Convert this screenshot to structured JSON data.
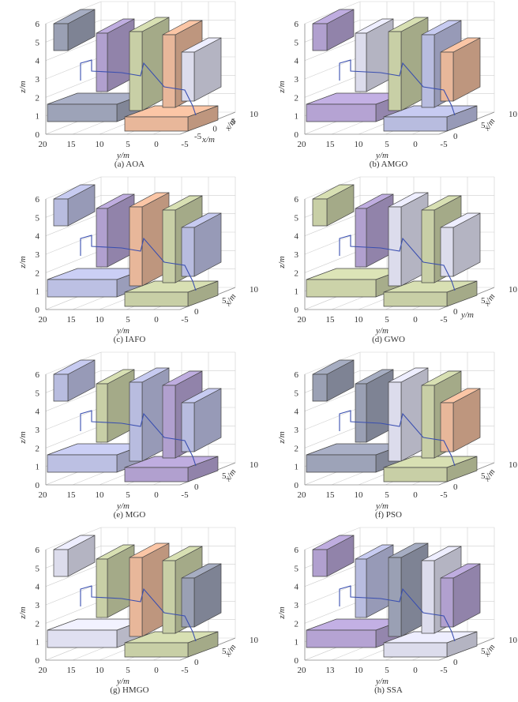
{
  "figure": {
    "panels": [
      {
        "id": "a",
        "caption": "(a) AOA",
        "z_axis_label": "z/m",
        "y_axis_label": "y/m",
        "x_axis_label": "x/m",
        "z_ticks": [
          "0",
          "1",
          "2",
          "3",
          "4",
          "5",
          "6"
        ],
        "y_ticks": [
          "20",
          "15",
          "10",
          "5",
          "0",
          "-5"
        ],
        "x_ticks": [
          "-5",
          "0",
          "5",
          "10"
        ],
        "extra_label": "x/m",
        "blocks": [
          {
            "color": "#9aa0b4",
            "shape": "low"
          },
          {
            "color": "#b1a0cf",
            "shape": "tall"
          },
          {
            "color": "#c8cfa6",
            "shape": "tall"
          },
          {
            "color": "#e8b79a",
            "shape": "tall"
          },
          {
            "color": "#dcdcec",
            "shape": "tall"
          }
        ]
      },
      {
        "id": "b",
        "caption": "(b) AMGO",
        "z_axis_label": "z/m",
        "y_axis_label": "y/m",
        "x_axis_label": "x/m",
        "z_ticks": [
          "0",
          "1",
          "2",
          "3",
          "4",
          "5",
          "6"
        ],
        "y_ticks": [
          "20",
          "15",
          "10",
          "5",
          "0",
          "-5"
        ],
        "x_ticks": [
          "0",
          "5",
          "10"
        ],
        "blocks": [
          {
            "color": "#b1a0cf",
            "shape": "low"
          },
          {
            "color": "#dcdcec",
            "shape": "tall"
          },
          {
            "color": "#c8cfa6",
            "shape": "tall"
          },
          {
            "color": "#b8bcdf",
            "shape": "tall"
          },
          {
            "color": "#e8b79a",
            "shape": "tall"
          }
        ]
      },
      {
        "id": "c",
        "caption": "(c) IAFO",
        "z_axis_label": "z/m",
        "y_axis_label": "y/m",
        "x_axis_label": "x/m",
        "z_ticks": [
          "0",
          "1",
          "2",
          "3",
          "4",
          "5",
          "6"
        ],
        "y_ticks": [
          "20",
          "15",
          "10",
          "5",
          "0",
          "-5"
        ],
        "x_ticks": [
          "0",
          "5",
          "10"
        ],
        "blocks": [
          {
            "color": "#b8bcdf",
            "shape": "low"
          },
          {
            "color": "#b1a0cf",
            "shape": "tall"
          },
          {
            "color": "#e8b79a",
            "shape": "tall"
          },
          {
            "color": "#c8cfa6",
            "shape": "tall"
          },
          {
            "color": "#b8bcdf",
            "shape": "tall"
          }
        ]
      },
      {
        "id": "d",
        "caption": "(d) GWO",
        "z_axis_label": "z/m",
        "y_axis_label": "y/m",
        "x_axis_label": "x/m",
        "z_ticks": [
          "0",
          "1",
          "2",
          "3",
          "4",
          "5",
          "6"
        ],
        "y_ticks": [
          "20",
          "15",
          "10",
          "5",
          "0",
          "-5"
        ],
        "x_ticks": [
          "0",
          "5",
          "10"
        ],
        "extra_label": "y/m",
        "blocks": [
          {
            "color": "#c8cfa6",
            "shape": "low"
          },
          {
            "color": "#b1a0cf",
            "shape": "tall"
          },
          {
            "color": "#dcdcec",
            "shape": "tall"
          },
          {
            "color": "#c8cfa6",
            "shape": "tall"
          },
          {
            "color": "#dcdcec",
            "shape": "tall"
          }
        ]
      },
      {
        "id": "e",
        "caption": "(e) MGO",
        "z_axis_label": "z/m",
        "y_axis_label": "y/m",
        "x_axis_label": "x/m",
        "z_ticks": [
          "0",
          "1",
          "2",
          "3",
          "4",
          "5",
          "6"
        ],
        "y_ticks": [
          "20",
          "15",
          "10",
          "5",
          "0",
          "-5"
        ],
        "x_ticks": [
          "0",
          "5",
          "10"
        ],
        "blocks": [
          {
            "color": "#b8bcdf",
            "shape": "low"
          },
          {
            "color": "#c8cfa6",
            "shape": "tall"
          },
          {
            "color": "#b8bcdf",
            "shape": "tall"
          },
          {
            "color": "#b1a0cf",
            "shape": "tall"
          },
          {
            "color": "#b8bcdf",
            "shape": "tall"
          }
        ]
      },
      {
        "id": "f",
        "caption": "(f) PSO",
        "z_axis_label": "z/m",
        "y_axis_label": "y/m",
        "x_axis_label": "x/m",
        "z_ticks": [
          "0",
          "1",
          "2",
          "3",
          "4",
          "5",
          "6"
        ],
        "y_ticks": [
          "20",
          "15",
          "10",
          "5",
          "0",
          "-5"
        ],
        "x_ticks": [
          "0",
          "5",
          "10"
        ],
        "blocks": [
          {
            "color": "#9aa0b4",
            "shape": "low"
          },
          {
            "color": "#9aa0b4",
            "shape": "tall"
          },
          {
            "color": "#dcdcec",
            "shape": "tall"
          },
          {
            "color": "#c8cfa6",
            "shape": "tall"
          },
          {
            "color": "#e8b79a",
            "shape": "tall"
          }
        ]
      },
      {
        "id": "g",
        "caption": "(g) HMGO",
        "z_axis_label": "z/m",
        "y_axis_label": "y/m",
        "x_axis_label": "x/m",
        "z_ticks": [
          "0",
          "1",
          "2",
          "3",
          "4",
          "5",
          "6"
        ],
        "y_ticks": [
          "20",
          "15",
          "10",
          "5",
          "0",
          "-5"
        ],
        "x_ticks": [
          "0",
          "5",
          "10"
        ],
        "blocks": [
          {
            "color": "#dcdcec",
            "shape": "low"
          },
          {
            "color": "#c8cfa6",
            "shape": "tall"
          },
          {
            "color": "#e8b79a",
            "shape": "tall"
          },
          {
            "color": "#c8cfa6",
            "shape": "tall"
          },
          {
            "color": "#9aa0b4",
            "shape": "tall"
          }
        ]
      },
      {
        "id": "h",
        "caption": "(h) SSA",
        "z_axis_label": "z/m",
        "y_axis_label": "y/m",
        "x_axis_label": "x/m",
        "z_ticks": [
          "0",
          "1",
          "2",
          "3",
          "4",
          "5",
          "6"
        ],
        "y_ticks": [
          "20",
          "13",
          "10",
          "5",
          "0",
          "-5"
        ],
        "x_ticks": [
          "0",
          "5",
          "10"
        ],
        "blocks": [
          {
            "color": "#b1a0cf",
            "shape": "low"
          },
          {
            "color": "#b8bcdf",
            "shape": "tall"
          },
          {
            "color": "#9aa0b4",
            "shape": "tall"
          },
          {
            "color": "#dcdcec",
            "shape": "tall"
          },
          {
            "color": "#b1a0cf",
            "shape": "tall"
          }
        ]
      }
    ],
    "path_color": "#3a4fb0",
    "edge_color": "#444444"
  }
}
